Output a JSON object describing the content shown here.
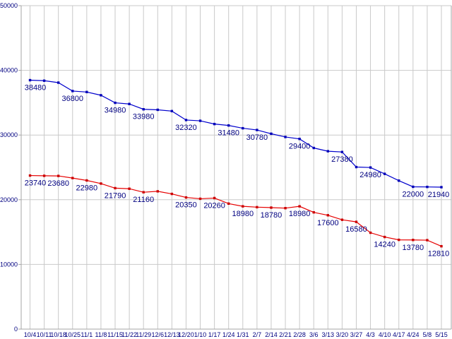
{
  "window": {
    "title": ""
  },
  "colors": {
    "background": "#ffffff",
    "grid": "#c9c9c9",
    "axis": "#a6a6a6",
    "text": "#000080",
    "series_blue_line": "#0000cc",
    "series_blue_marker": "#0000b8",
    "series_red_line": "#e60000",
    "series_red_marker": "#cc0000"
  },
  "chart_data": {
    "type": "line",
    "title": "",
    "xlabel": "",
    "ylabel": "",
    "grid": true,
    "legend": "none",
    "ylim": [
      0,
      50000
    ],
    "y_ticks": [
      0,
      10000,
      20000,
      30000,
      40000,
      50000
    ],
    "y_tick_labels": [
      "0",
      "10000",
      "20000",
      "30000",
      "40000",
      "50000"
    ],
    "x_labels": [
      "10/4",
      "10/11",
      "10/18",
      "10/25",
      "11/1",
      "11/8",
      "11/15",
      "11/22",
      "11/29",
      "12/6",
      "12/13",
      "12/20",
      "1/10",
      "1/17",
      "1/24",
      "1/31",
      "2/7",
      "2/14",
      "2/21",
      "2/28",
      "3/6",
      "3/13",
      "3/20",
      "3/27",
      "4/3",
      "4/10",
      "4/17",
      "4/24",
      "5/8",
      "5/15"
    ],
    "series": [
      {
        "name": "series-blue",
        "color": "#0000cc",
        "marker_color": "#0000b8",
        "values": [
          38480,
          38400,
          38100,
          36800,
          36650,
          36150,
          34980,
          34800,
          33980,
          33900,
          33700,
          32320,
          32200,
          31700,
          31480,
          31050,
          30780,
          30200,
          29700,
          29400,
          28000,
          27500,
          27380,
          25050,
          24980,
          24000,
          22950,
          22000,
          21980,
          21940
        ],
        "point_labels": [
          [
            0,
            "38480"
          ],
          [
            3,
            "36800"
          ],
          [
            6,
            "34980"
          ],
          [
            8,
            "33980"
          ],
          [
            11,
            "32320"
          ],
          [
            14,
            "31480"
          ],
          [
            16,
            "30780"
          ],
          [
            19,
            "29400"
          ],
          [
            22,
            "27380"
          ],
          [
            24,
            "24980"
          ],
          [
            27,
            "22000"
          ],
          [
            29,
            "21940"
          ]
        ]
      },
      {
        "name": "series-red",
        "color": "#e60000",
        "marker_color": "#cc0000",
        "values": [
          23740,
          23700,
          23680,
          23350,
          22980,
          22500,
          21790,
          21700,
          21160,
          21300,
          20900,
          20350,
          20150,
          20260,
          19400,
          18980,
          18850,
          18780,
          18700,
          18980,
          18050,
          17600,
          16900,
          16580,
          14900,
          14240,
          13800,
          13780,
          13750,
          12810
        ],
        "point_labels": [
          [
            0,
            "23740"
          ],
          [
            2,
            "23680"
          ],
          [
            4,
            "22980"
          ],
          [
            6,
            "21790"
          ],
          [
            8,
            "21160"
          ],
          [
            11,
            "20350"
          ],
          [
            13,
            "20260"
          ],
          [
            15,
            "18980"
          ],
          [
            17,
            "18780"
          ],
          [
            19,
            "18980"
          ],
          [
            21,
            "17600"
          ],
          [
            23,
            "16580"
          ],
          [
            25,
            "14240"
          ],
          [
            27,
            "13780"
          ],
          [
            29,
            "12810"
          ]
        ]
      }
    ]
  }
}
